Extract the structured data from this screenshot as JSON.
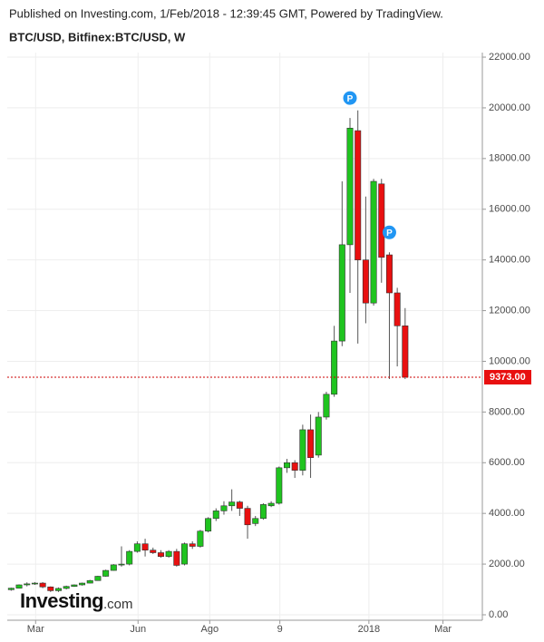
{
  "chart_data": {
    "type": "candlestick",
    "title": "BTC/USD, Bitfinex:BTC/USD, W",
    "subtitle": "Published on Investing.com, 1/Feb/2018 - 12:39:45 GMT, Powered by TradingView.",
    "watermark": {
      "main": "Investing",
      "suffix": ".com"
    },
    "up_color": "#1fc41f",
    "down_color": "#e81010",
    "wick_color": "#555555",
    "categories": [
      null,
      null,
      null,
      null,
      null,
      null,
      null,
      null,
      null,
      null,
      null,
      null,
      null,
      null,
      null,
      null,
      null,
      null,
      null,
      null,
      null,
      null,
      null,
      null,
      null,
      null,
      null,
      null,
      null,
      null,
      null,
      null,
      null,
      null,
      null,
      null,
      null,
      null,
      null,
      null,
      null,
      null,
      null,
      null,
      null,
      null,
      null,
      null,
      null,
      null,
      null
    ],
    "open": [
      990,
      1050,
      1180,
      1230,
      1250,
      1100,
      950,
      1040,
      1120,
      1180,
      1250,
      1350,
      1520,
      1750,
      1970,
      2000,
      2500,
      2800,
      2550,
      2450,
      2300,
      2500,
      2000,
      2800,
      2700,
      3300,
      3800,
      4100,
      4300,
      4450,
      4200,
      3600,
      3800,
      4300,
      4400,
      5800,
      6000,
      5700,
      7300,
      6300,
      7800,
      8700,
      10800,
      14600,
      19100,
      14000,
      12300,
      17000,
      14200,
      12700,
      11400
    ],
    "high": [
      1070,
      1200,
      1280,
      1290,
      1290,
      1120,
      1080,
      1150,
      1200,
      1270,
      1380,
      1540,
      1780,
      2000,
      2700,
      2550,
      2900,
      3000,
      2650,
      2550,
      2550,
      2600,
      2850,
      2900,
      3350,
      3850,
      4200,
      4480,
      4950,
      4500,
      4300,
      3900,
      4400,
      4480,
      5850,
      6150,
      6100,
      7500,
      7900,
      8000,
      8800,
      11400,
      17100,
      19600,
      19900,
      16500,
      17200,
      17200,
      14300,
      12900,
      12100
    ],
    "low": [
      950,
      1040,
      1120,
      1180,
      1050,
      900,
      900,
      1000,
      1100,
      1150,
      1240,
      1340,
      1500,
      1740,
      1900,
      1950,
      2450,
      2300,
      2400,
      2250,
      2250,
      1900,
      1950,
      2600,
      2650,
      3250,
      3700,
      3950,
      4100,
      3900,
      3000,
      3500,
      3750,
      4250,
      4350,
      5600,
      5400,
      5500,
      5400,
      6200,
      7700,
      8600,
      10600,
      12700,
      10700,
      11500,
      12200,
      13100,
      9300,
      9800,
      9300
    ],
    "close": [
      1050,
      1180,
      1220,
      1250,
      1100,
      950,
      1040,
      1120,
      1180,
      1250,
      1350,
      1520,
      1750,
      1970,
      2000,
      2500,
      2800,
      2550,
      2450,
      2300,
      2500,
      1950,
      2800,
      2700,
      3300,
      3800,
      4100,
      4300,
      4450,
      4200,
      3550,
      3800,
      4350,
      4400,
      5800,
      6000,
      5700,
      7300,
      6200,
      7800,
      8700,
      10800,
      14600,
      19200,
      14000,
      12300,
      17100,
      14100,
      12700,
      11400,
      9373
    ],
    "last": {
      "value": 9373,
      "label": "9373.00"
    },
    "events": [
      {
        "label": "P",
        "x": 43
      },
      {
        "label": "P",
        "x": 48
      }
    ],
    "xlim": [
      -0.5,
      59.8
    ],
    "xticks": [
      {
        "value": 3.1,
        "label": "Mar"
      },
      {
        "value": 16.1,
        "label": "Jun"
      },
      {
        "value": 25.2,
        "label": "Ago"
      },
      {
        "value": 34.1,
        "label": "9"
      },
      {
        "value": 45.4,
        "label": "2018"
      },
      {
        "value": 54.8,
        "label": "Mar"
      }
    ],
    "ylim": [
      -215,
      22180
    ],
    "yticks": [
      {
        "value": 0,
        "label": "0.00"
      },
      {
        "value": 2000,
        "label": "2000.00"
      },
      {
        "value": 4000,
        "label": "4000.00"
      },
      {
        "value": 6000,
        "label": "6000.00"
      },
      {
        "value": 8000,
        "label": "8000.00"
      },
      {
        "value": 10000,
        "label": "10000.00"
      },
      {
        "value": 12000,
        "label": "12000.00"
      },
      {
        "value": 14000,
        "label": "14000.00"
      },
      {
        "value": 16000,
        "label": "16000.00"
      },
      {
        "value": 18000,
        "label": "18000.00"
      },
      {
        "value": 20000,
        "label": "20000.00"
      },
      {
        "value": 22000,
        "label": "22000.00"
      }
    ],
    "grid": true
  }
}
